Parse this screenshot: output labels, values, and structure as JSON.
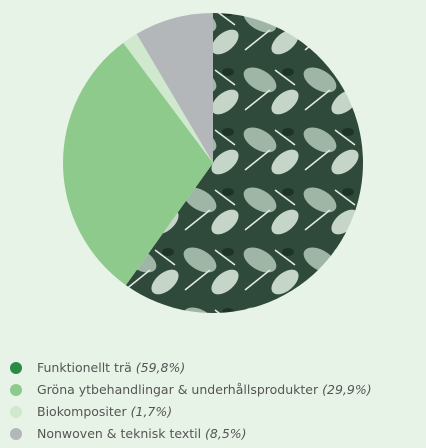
{
  "chart_data": {
    "type": "pie",
    "categories": [
      "Funktionellt trä",
      "Gröna ytbehandlingar & underhållsprodukter",
      "Biokompositer",
      "Nonwoven & teknisk textil"
    ],
    "values": [
      59.8,
      29.9,
      1.7,
      8.5
    ],
    "value_labels": [
      "(59,8%)",
      "(29,9%)",
      "(1,7%)",
      "(8,5%)"
    ],
    "colors": [
      "#2b8a47",
      "#8dca8b",
      "#d0e9ce",
      "#b4b7ba"
    ]
  }
}
